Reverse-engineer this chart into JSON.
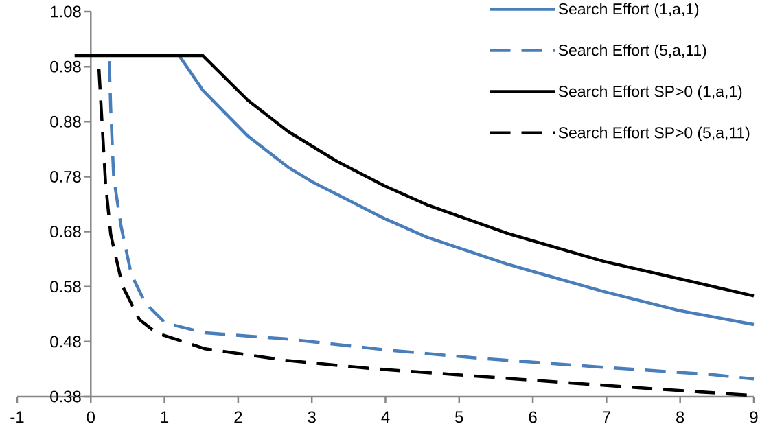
{
  "chart_data": {
    "type": "line",
    "xlim": [
      -1,
      9
    ],
    "ylim": [
      0.38,
      1.08
    ],
    "xticks": [
      -1,
      0,
      1,
      2,
      3,
      4,
      5,
      6,
      7,
      8,
      9
    ],
    "yticks": [
      0.38,
      0.48,
      0.58,
      0.68,
      0.78,
      0.88,
      0.98,
      1.08
    ],
    "legend": "top right",
    "series": [
      {
        "name": "Search Effort (1,a,1)",
        "color": "#4a7ebb",
        "line_style": "solid",
        "x": [
          1.2,
          1.52,
          2.13,
          2.68,
          3.0,
          3.72,
          4.0,
          4.56,
          5.65,
          6.96,
          7.97,
          9.0
        ],
        "values": [
          1.0,
          0.937,
          0.854,
          0.797,
          0.771,
          0.722,
          0.703,
          0.67,
          0.621,
          0.571,
          0.537,
          0.511
        ]
      },
      {
        "name": "Search Effort (5,a,11)",
        "color": "#4a7ebb",
        "line_style": "dashed",
        "x": [
          0.25,
          0.27,
          0.31,
          0.41,
          0.55,
          0.74,
          1.01,
          1.55,
          2.64,
          4.0,
          5.34,
          6.88,
          8.44,
          9.0
        ],
        "values": [
          0.99,
          0.904,
          0.779,
          0.69,
          0.602,
          0.55,
          0.514,
          0.496,
          0.485,
          0.465,
          0.449,
          0.434,
          0.42,
          0.412
        ]
      },
      {
        "name": "Search Effort SP>0 (1,a,1)",
        "color": "#000000",
        "line_style": "solid",
        "x": [
          -0.22,
          1.52,
          2.13,
          2.68,
          3.34,
          3.99,
          4.56,
          5.65,
          6.96,
          7.97,
          9.0
        ],
        "values": [
          1.0,
          1.0,
          0.919,
          0.862,
          0.808,
          0.763,
          0.729,
          0.677,
          0.626,
          0.595,
          0.563
        ]
      },
      {
        "name": "Search Effort SP>0 (5,a,11)",
        "color": "#000000",
        "line_style": "dashed",
        "x": [
          0.11,
          0.15,
          0.2,
          0.27,
          0.43,
          0.66,
          0.89,
          1.55,
          2.64,
          3.8,
          4.95,
          6.5,
          7.67,
          9.0
        ],
        "values": [
          0.976,
          0.883,
          0.768,
          0.675,
          0.581,
          0.52,
          0.496,
          0.467,
          0.446,
          0.431,
          0.42,
          0.405,
          0.394,
          0.382
        ]
      }
    ]
  }
}
